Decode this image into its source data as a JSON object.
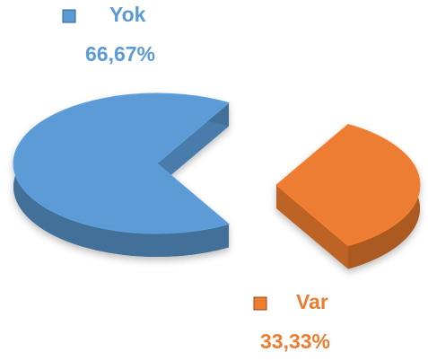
{
  "chart_data": {
    "type": "pie",
    "categories": [
      "Yok",
      "Var"
    ],
    "values": [
      66.67,
      33.33
    ],
    "value_labels": [
      "66,67%",
      "33,33%"
    ],
    "colors": [
      "#5b9bd5",
      "#ed7d31"
    ],
    "legend": "labels"
  }
}
